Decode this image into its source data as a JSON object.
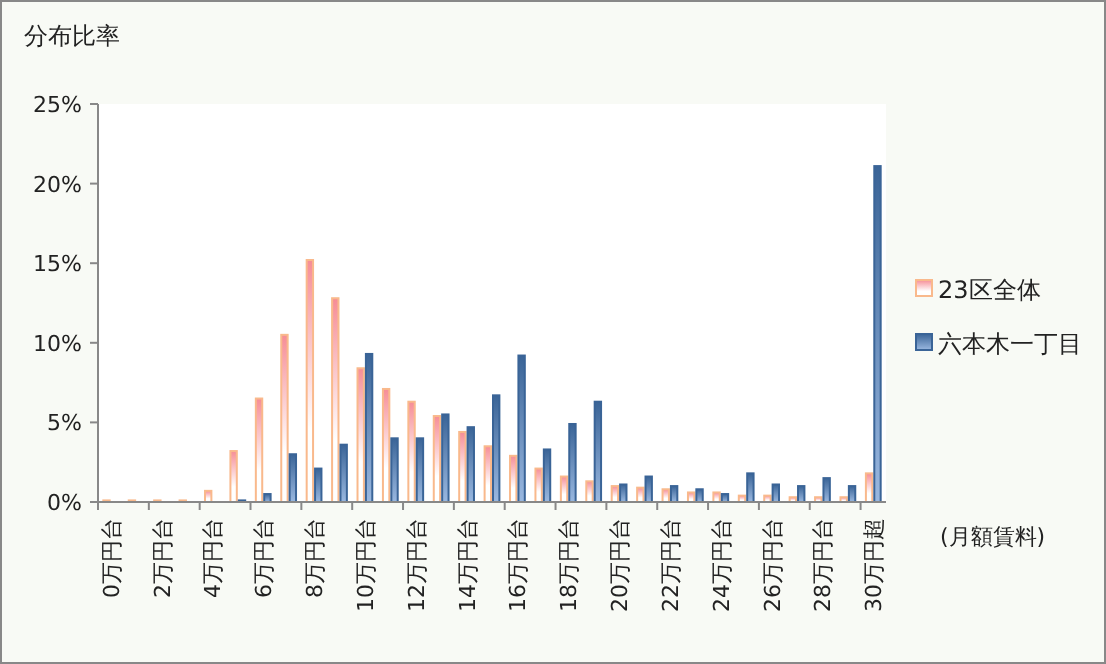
{
  "chart_data": {
    "type": "bar",
    "title": "分布比率",
    "xlabel": "(月額賃料)",
    "categories": [
      "0万円台",
      null,
      "2万円台",
      null,
      "4万円台",
      null,
      "6万円台",
      null,
      "8万円台",
      null,
      "10万円台",
      null,
      "12万円台",
      null,
      "14万円台",
      null,
      "16万円台",
      null,
      "18万円台",
      null,
      "20万円台",
      null,
      "22万円台",
      null,
      "24万円台",
      null,
      "26万円台",
      null,
      "28万円台",
      null,
      "30万円超"
    ],
    "series": [
      {
        "name": "23区全体",
        "color": "#f9b98c",
        "values": [
          0.1,
          0.1,
          0.1,
          0.1,
          0.7,
          3.2,
          6.5,
          10.5,
          15.2,
          12.8,
          8.4,
          7.1,
          6.3,
          5.4,
          4.4,
          3.5,
          2.9,
          2.1,
          1.6,
          1.3,
          1.0,
          0.9,
          0.8,
          0.6,
          0.6,
          0.4,
          0.4,
          0.3,
          0.3,
          0.3,
          1.8
        ]
      },
      {
        "name": "六本木一丁目",
        "color": "#3a6497",
        "values": [
          0,
          0,
          0,
          0,
          0,
          0.1,
          0.5,
          3.0,
          2.1,
          3.6,
          9.3,
          4.0,
          4.0,
          5.5,
          4.7,
          6.7,
          9.2,
          3.3,
          4.9,
          6.3,
          1.1,
          1.6,
          1.0,
          0.8,
          0.5,
          1.8,
          1.1,
          1.0,
          1.5,
          1.0,
          21.1
        ]
      }
    ],
    "ylim": [
      0,
      25
    ],
    "yticks": [
      {
        "value": 0,
        "label": "0%"
      },
      {
        "value": 5,
        "label": "5%"
      },
      {
        "value": 10,
        "label": "10%"
      },
      {
        "value": 15,
        "label": "15%"
      },
      {
        "value": 20,
        "label": "20%"
      },
      {
        "value": 25,
        "label": "25%"
      }
    ],
    "legend": "right"
  }
}
